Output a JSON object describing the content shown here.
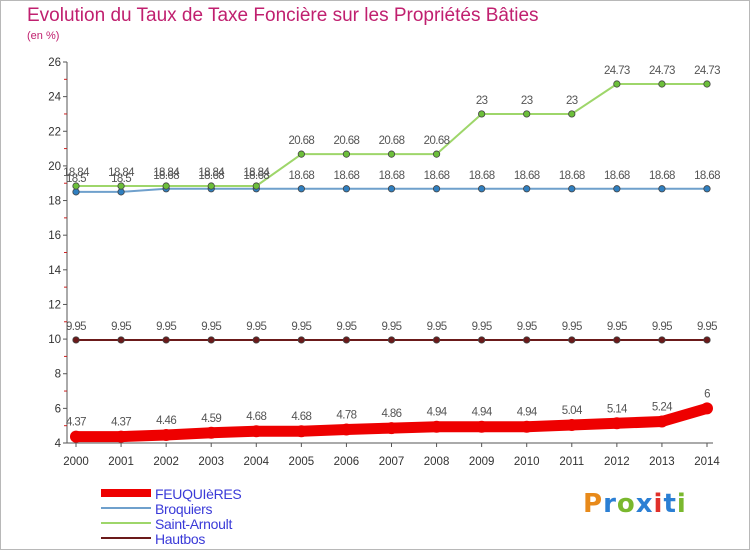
{
  "title": "Evolution du Taux de Taxe Foncière sur les Propriétés Bâties",
  "subtitle": "(en %)",
  "logo": {
    "text": "Proxiti",
    "colors": [
      "#e88a1a",
      "#2b7fd4",
      "#7ab82e",
      "#2b7fd4",
      "#e0302a",
      "#2b7fd4",
      "#7ab82e"
    ]
  },
  "chart_data": {
    "type": "line",
    "title": "Evolution du Taux de Taxe Foncière sur les Propriétés Bâties",
    "ylabel": "(en %)",
    "xlabel": "",
    "ylim": [
      4,
      26
    ],
    "yticks": [
      4,
      6,
      8,
      10,
      12,
      14,
      16,
      18,
      20,
      22,
      24,
      26
    ],
    "grid": false,
    "legend_position": "bottom-left",
    "x": [
      "2000",
      "2001",
      "2002",
      "2003",
      "2004",
      "2005",
      "2006",
      "2007",
      "2008",
      "2009",
      "2010",
      "2011",
      "2012",
      "2013",
      "2014"
    ],
    "series": [
      {
        "name": "Hautbos",
        "color": "#6b1a1a",
        "marker": "#6b1a1a",
        "values": [
          9.95,
          9.95,
          9.95,
          9.95,
          9.95,
          9.95,
          9.95,
          9.95,
          9.95,
          9.95,
          9.95,
          9.95,
          9.95,
          9.95,
          9.95
        ],
        "labels": [
          "9.95",
          "9.95",
          "9.95",
          "9.95",
          "9.95",
          "9.95",
          "9.95",
          "9.95",
          "9.95",
          "9.95",
          "9.95",
          "9.95",
          "9.95",
          "9.95",
          "9.95"
        ]
      },
      {
        "name": "Broquiers",
        "color": "#6fa0cc",
        "marker": "#2f7fc0",
        "values": [
          18.5,
          18.5,
          18.68,
          18.68,
          18.68,
          18.68,
          18.68,
          18.68,
          18.68,
          18.68,
          18.68,
          18.68,
          18.68,
          18.68,
          18.68
        ],
        "labels": [
          "18.5",
          "18.5",
          "18.68",
          "18.68",
          "18.68",
          "18.68",
          "18.68",
          "18.68",
          "18.68",
          "18.68",
          "18.68",
          "18.68",
          "18.68",
          "18.68",
          "18.68"
        ]
      },
      {
        "name": "Saint-Arnoult",
        "color": "#9ed66a",
        "marker": "#6cbf3a",
        "values": [
          18.84,
          18.84,
          18.84,
          18.84,
          18.84,
          20.68,
          20.68,
          20.68,
          20.68,
          23,
          23,
          23,
          24.73,
          24.73,
          24.73
        ],
        "labels": [
          "18.84",
          "18.84",
          "18.84",
          "18.84",
          "18.84",
          "20.68",
          "20.68",
          "20.68",
          "20.68",
          "23",
          "23",
          "23",
          "24.73",
          "24.73",
          "24.73"
        ]
      },
      {
        "name": "FEUQUIèRES",
        "color": "#ee0000",
        "marker": "#ee0000",
        "values": [
          4.37,
          4.37,
          4.46,
          4.59,
          4.68,
          4.68,
          4.78,
          4.86,
          4.94,
          4.94,
          4.94,
          5.04,
          5.14,
          5.24,
          6
        ],
        "labels": [
          "4.37",
          "4.37",
          "4.46",
          "4.59",
          "4.68",
          "4.68",
          "4.78",
          "4.86",
          "4.94",
          "4.94",
          "4.94",
          "5.04",
          "5.14",
          "5.24",
          "6"
        ]
      }
    ],
    "legend": [
      "FEUQUIèRES",
      "Broquiers",
      "Saint-Arnoult",
      "Hautbos"
    ]
  }
}
